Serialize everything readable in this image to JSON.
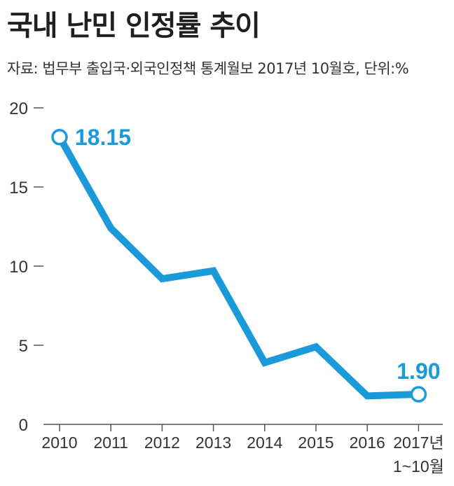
{
  "title": "국내 난민 인정률 추이",
  "source": "자료: 법무부 출입국·외국인정책 통계월보 2017년 10월호, 단위:%",
  "colors": {
    "line": "#1a9ad8",
    "axis": "#555555",
    "text": "#333333"
  },
  "chart_data": {
    "type": "line",
    "title": "국내 난민 인정률 추이",
    "xlabel": "",
    "ylabel": "",
    "unit": "%",
    "ylim": [
      0,
      20
    ],
    "yticks": [
      "0",
      "5",
      "10",
      "15",
      "20"
    ],
    "categories": [
      "2010",
      "2011",
      "2012",
      "2013",
      "2014",
      "2015",
      "2016",
      "2017년"
    ],
    "last_category_sub": "1~10월",
    "values": [
      18.15,
      12.4,
      9.2,
      9.7,
      3.9,
      4.9,
      1.8,
      1.9
    ],
    "data_labels": [
      {
        "index": 0,
        "text": "18.15"
      },
      {
        "index": 7,
        "text": "1.90"
      }
    ],
    "grid": false,
    "legend": "none"
  }
}
